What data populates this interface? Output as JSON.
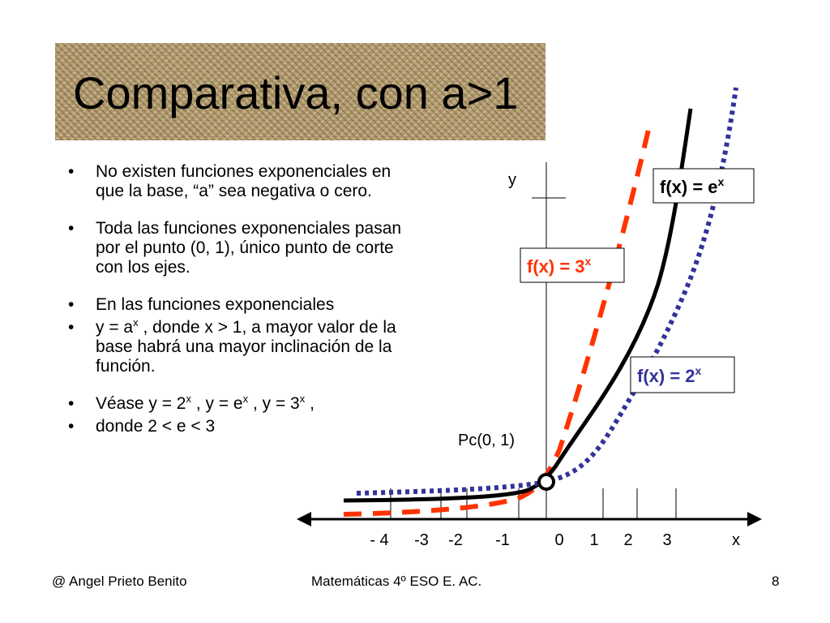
{
  "title": "Comparativa, con a>1",
  "bullets": [
    {
      "text": "No existen funciones exponenciales en que la base, “a” sea  negativa o cero."
    },
    {
      "text": "Toda las funciones exponenciales pasan por el punto (0, 1), único punto de corte con los ejes."
    },
    {
      "text": "En las funciones exponenciales"
    },
    {
      "pre": "y = a",
      "sup": "x",
      "post": " , donde x > 1, a mayor valor de la base habrá una mayor inclinación de la función."
    },
    {
      "pre": "Véase   y = 2",
      "sup1": "x",
      "mid1": " , y = e",
      "sup2": "x",
      "mid2": " , y = 3",
      "sup3": "x",
      "post": " ,"
    },
    {
      "text": "donde  2 < e < 3"
    }
  ],
  "graph": {
    "y_axis_label": "y",
    "x_axis_label": "x",
    "x_tick_labels": [
      "- 4",
      "-3",
      "-2",
      "-1",
      "0",
      "1",
      "2",
      "3"
    ],
    "point_label": "Pc(0, 1)",
    "equations": {
      "e": {
        "base": "f(x) = e",
        "exp": "x",
        "color": "#000000"
      },
      "three": {
        "base": "f(x) = 3",
        "exp": "x",
        "color": "#ff3300"
      },
      "two": {
        "base": "f(x) = 2",
        "exp": "x",
        "color": "#33339a"
      }
    },
    "curve_colors": {
      "ex": "#000000",
      "3x": "#ff3300",
      "2x": "#333399"
    }
  },
  "footer": {
    "author": "@   Angel Prieto Benito",
    "course": "Matemáticas  4º ESO  E. AC.",
    "page": "8"
  }
}
